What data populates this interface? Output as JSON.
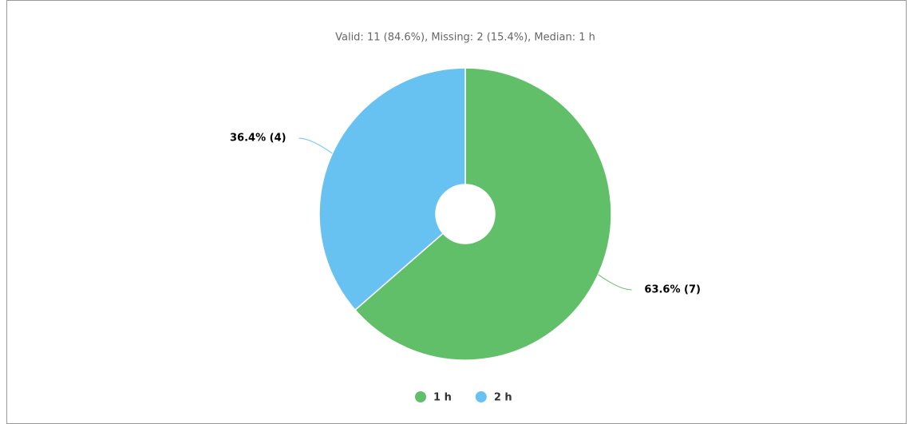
{
  "chart_data": {
    "type": "pie",
    "subtitle": "Valid: 11 (84.6%), Missing: 2 (15.4%), Median: 1 h",
    "categories": [
      "1 h",
      "2 h"
    ],
    "values": [
      63.6,
      36.4
    ],
    "value_labels": [
      "63.6% (7)",
      "36.4% (4)"
    ],
    "colors": [
      "#62bf69",
      "#67c1f1"
    ],
    "donut": true,
    "legend": "bottom"
  }
}
